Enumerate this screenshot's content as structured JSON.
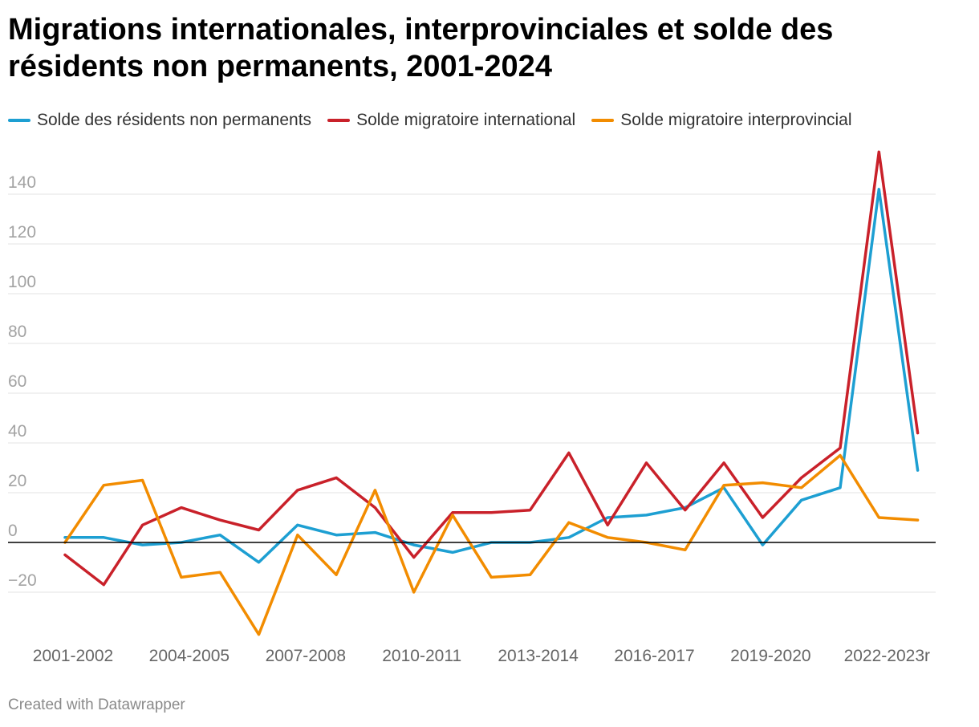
{
  "chart_data": {
    "type": "line",
    "title": "Migrations internationales, interprovinciales et solde des résidents non permanents, 2001-2024",
    "x": [
      "2001-2002",
      "2002-2003",
      "2003-2004",
      "2004-2005",
      "2005-2006",
      "2006-2007",
      "2007-2008",
      "2008-2009",
      "2009-2010",
      "2010-2011",
      "2011-2012",
      "2012-2013",
      "2013-2014",
      "2014-2015",
      "2015-2016",
      "2016-2017",
      "2017-2018",
      "2018-2019",
      "2019-2020",
      "2020-2021",
      "2021-2022",
      "2022-2023r",
      "2023-2024"
    ],
    "x_tick_labels": [
      "2001-2002",
      "2004-2005",
      "2007-2008",
      "2010-2011",
      "2013-2014",
      "2016-2017",
      "2019-2020",
      "2022-2023r"
    ],
    "y_ticks": [
      -20,
      0,
      20,
      40,
      60,
      80,
      100,
      120,
      140
    ],
    "ylim": [
      -37,
      160
    ],
    "grid": true,
    "legend_position": "top-left",
    "series": [
      {
        "name": "Solde des résidents non permanents",
        "color": "#1d9fd2",
        "values": [
          2,
          2,
          -1,
          0,
          3,
          -8,
          7,
          3,
          4,
          -1,
          -4,
          0,
          0,
          2,
          10,
          11,
          14,
          22,
          -1,
          17,
          22,
          142,
          29
        ]
      },
      {
        "name": "Solde migratoire international",
        "color": "#c9212a",
        "values": [
          -5,
          -17,
          7,
          14,
          9,
          5,
          21,
          26,
          14,
          -6,
          12,
          12,
          13,
          36,
          7,
          32,
          13,
          32,
          10,
          26,
          38,
          157,
          44
        ]
      },
      {
        "name": "Solde migratoire interprovincial",
        "color": "#f28c00",
        "values": [
          0,
          23,
          25,
          -14,
          -12,
          -37,
          3,
          -13,
          21,
          -20,
          11,
          -14,
          -13,
          8,
          2,
          0,
          -3,
          23,
          24,
          22,
          35,
          10,
          9
        ]
      }
    ]
  },
  "footer": {
    "credit": "Created with Datawrapper"
  }
}
